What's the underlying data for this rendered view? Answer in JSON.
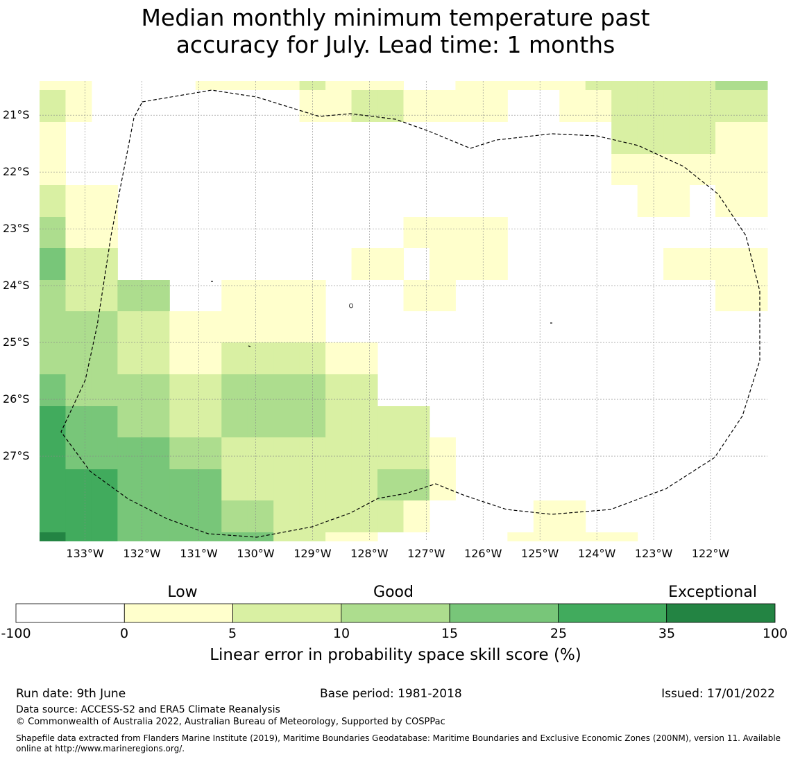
{
  "title_line1": "Median monthly minimum temperature past",
  "title_line2": "accuracy for July. Lead time: 1 months",
  "chart_data": {
    "type": "heatmap",
    "title": "Median monthly minimum temperature past accuracy for July. Lead time: 1 months",
    "x_label": "",
    "y_label": "",
    "x_tick_labels": [
      "133°W",
      "132°W",
      "131°W",
      "130°W",
      "129°W",
      "128°W",
      "127°W",
      "126°W",
      "125°W",
      "124°W",
      "123°W",
      "122°W"
    ],
    "y_tick_labels": [
      "21°S",
      "22°S",
      "23°S",
      "24°S",
      "25°S",
      "26°S",
      "27°S"
    ],
    "x_range": [
      -133.8,
      -121.0
    ],
    "y_range": [
      -28.5,
      -20.4
    ],
    "grid": true,
    "cell_size_degrees": 0.833,
    "category_codes": {
      "0": "-100 to 0",
      "1": "0 to 5",
      "2": "5 to 10",
      "3": "10 to 15",
      "4": "15 to 25",
      "5": "25 to 35",
      "6": "35 to 100"
    },
    "grid_rows_north_to_south": [
      [
        1,
        1,
        0,
        0,
        0,
        0,
        1,
        1,
        1,
        1,
        2,
        1,
        1,
        1,
        0,
        0,
        1,
        1,
        1,
        1,
        1,
        2,
        2,
        2,
        2,
        2,
        3,
        3
      ],
      [
        2,
        1,
        0,
        0,
        0,
        0,
        0,
        0,
        0,
        0,
        1,
        1,
        2,
        2,
        1,
        1,
        1,
        1,
        0,
        0,
        1,
        1,
        2,
        2,
        2,
        2,
        2,
        2
      ],
      [
        1,
        0,
        0,
        0,
        0,
        0,
        0,
        0,
        0,
        0,
        0,
        0,
        0,
        0,
        0,
        0,
        0,
        0,
        0,
        0,
        0,
        0,
        2,
        2,
        2,
        2,
        1,
        1
      ],
      [
        1,
        0,
        0,
        0,
        0,
        0,
        0,
        0,
        0,
        0,
        0,
        0,
        0,
        0,
        0,
        0,
        0,
        0,
        0,
        0,
        0,
        0,
        1,
        1,
        1,
        1,
        1,
        1
      ],
      [
        2,
        1,
        1,
        0,
        0,
        0,
        0,
        0,
        0,
        0,
        0,
        0,
        0,
        0,
        0,
        0,
        0,
        0,
        0,
        0,
        0,
        0,
        0,
        1,
        1,
        0,
        1,
        1
      ],
      [
        3,
        1,
        1,
        0,
        0,
        0,
        0,
        0,
        0,
        0,
        0,
        0,
        0,
        0,
        1,
        1,
        1,
        1,
        0,
        0,
        0,
        0,
        0,
        0,
        0,
        0,
        0,
        0
      ],
      [
        4,
        2,
        2,
        0,
        0,
        0,
        0,
        0,
        0,
        0,
        0,
        0,
        1,
        1,
        0,
        1,
        1,
        1,
        0,
        0,
        0,
        0,
        0,
        0,
        1,
        1,
        1,
        1
      ],
      [
        3,
        2,
        2,
        3,
        3,
        0,
        0,
        1,
        1,
        1,
        1,
        0,
        0,
        0,
        1,
        1,
        0,
        0,
        0,
        0,
        0,
        0,
        0,
        0,
        0,
        0,
        1,
        1
      ],
      [
        3,
        3,
        3,
        2,
        2,
        1,
        1,
        1,
        1,
        1,
        1,
        0,
        0,
        0,
        0,
        0,
        0,
        0,
        0,
        0,
        0,
        0,
        0,
        0,
        0,
        0,
        0,
        0
      ],
      [
        3,
        3,
        3,
        2,
        2,
        1,
        1,
        2,
        2,
        2,
        2,
        1,
        1,
        0,
        0,
        0,
        0,
        0,
        0,
        0,
        0,
        0,
        0,
        0,
        0,
        0,
        0,
        0
      ],
      [
        4,
        3,
        3,
        3,
        3,
        2,
        2,
        3,
        3,
        3,
        3,
        2,
        2,
        0,
        0,
        0,
        0,
        0,
        0,
        0,
        0,
        0,
        0,
        0,
        0,
        0,
        0,
        0
      ],
      [
        5,
        4,
        4,
        3,
        3,
        2,
        2,
        3,
        3,
        3,
        3,
        2,
        2,
        2,
        2,
        0,
        0,
        0,
        0,
        0,
        0,
        0,
        0,
        0,
        0,
        0,
        0,
        0
      ],
      [
        5,
        4,
        4,
        4,
        4,
        3,
        3,
        2,
        2,
        2,
        2,
        2,
        2,
        2,
        2,
        1,
        0,
        0,
        0,
        0,
        0,
        0,
        0,
        0,
        0,
        0,
        0,
        0
      ],
      [
        5,
        5,
        5,
        4,
        4,
        4,
        4,
        2,
        2,
        2,
        2,
        2,
        2,
        3,
        3,
        1,
        0,
        0,
        0,
        0,
        0,
        0,
        0,
        0,
        0,
        0,
        0,
        0
      ],
      [
        5,
        5,
        5,
        4,
        4,
        4,
        4,
        3,
        3,
        2,
        2,
        2,
        2,
        2,
        1,
        0,
        0,
        0,
        0,
        1,
        1,
        0,
        0,
        0,
        0,
        0,
        0,
        0
      ],
      [
        6,
        5,
        5,
        4,
        4,
        4,
        4,
        4,
        4,
        2,
        2,
        1,
        1,
        0,
        0,
        0,
        0,
        0,
        1,
        1,
        1,
        1,
        1,
        0,
        0,
        0,
        0,
        0
      ]
    ]
  },
  "colorbar": {
    "category_labels": [
      "Low",
      "Good",
      "Exceptional"
    ],
    "bins": [
      {
        "from": "-100",
        "to": "0",
        "color": "#ffffff"
      },
      {
        "from": "0",
        "to": "5",
        "color": "#ffffcc"
      },
      {
        "from": "5",
        "to": "10",
        "color": "#d9f0a3"
      },
      {
        "from": "10",
        "to": "15",
        "color": "#addd8e"
      },
      {
        "from": "15",
        "to": "25",
        "color": "#78c679"
      },
      {
        "from": "25",
        "to": "35",
        "color": "#41ab5d"
      },
      {
        "from": "35",
        "to": "100",
        "color": "#238443"
      }
    ],
    "tick_labels": [
      "-100",
      "0",
      "5",
      "10",
      "15",
      "25",
      "35",
      "100"
    ],
    "label": "Linear error in probability space skill score (%)"
  },
  "footer": {
    "run_date": "Run date: 9th June",
    "base_period": "Base period: 1981-2018",
    "issued": "Issued: 17/01/2022",
    "data_source": "Data source: ACCESS-S2 and ERA5 Climate Reanalysis",
    "copyright": "© Commonwealth of Australia 2022, Australian Bureau of Meteorology, Supported by COSPPac",
    "shapefile_line1": "Shapefile data extracted from Flanders Marine Institute (2019), Maritime Boundaries Geodatabase: Maritime Boundaries and Exclusive Economic Zones (200NM), version 11. Available",
    "shapefile_line2": "online at http://www.marineregions.org/."
  }
}
